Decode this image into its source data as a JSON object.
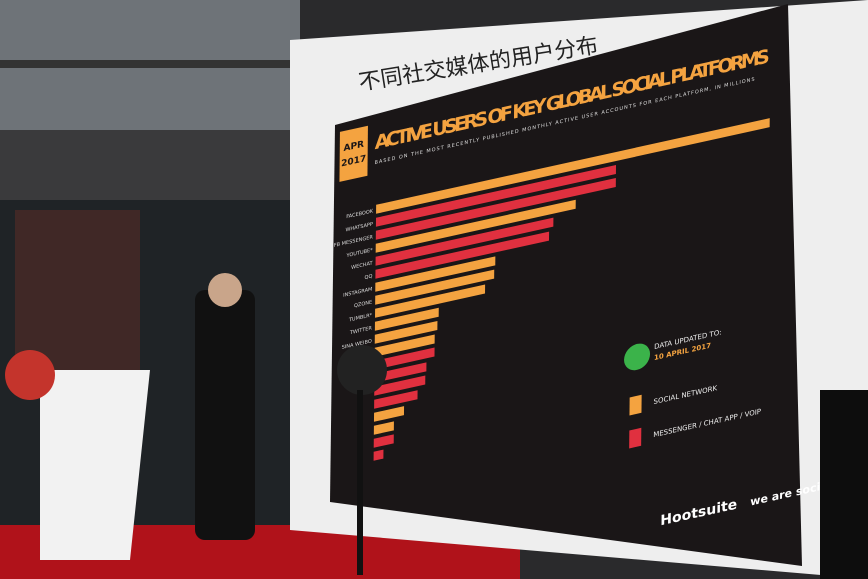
{
  "slide": {
    "caption": "不同社交媒体的用户分布",
    "badge_month": "APR",
    "badge_year": "2017",
    "title": "ACTIVE USERS OF KEY GLOBAL SOCIAL PLATFORMS",
    "subtitle": "BASED ON THE MOST RECENTLY PUBLISHED MONTHLY ACTIVE USER ACCOUNTS FOR EACH PLATFORM, IN MILLIONS",
    "platforms": [
      {
        "name": "FACEBOOK",
        "color": "#f4a340",
        "value": 1968
      },
      {
        "name": "WHATSAPP",
        "color": "#e0303f",
        "value": 1200
      },
      {
        "name": "FB MESSENGER",
        "color": "#e0303f",
        "value": 1200
      },
      {
        "name": "YOUTUBE*",
        "color": "#f4a340",
        "value": 1000
      },
      {
        "name": "WECHAT",
        "color": "#e0303f",
        "value": 889
      },
      {
        "name": "QQ",
        "color": "#e0303f",
        "value": 868
      },
      {
        "name": "INSTAGRAM",
        "color": "#f4a340",
        "value": 600
      },
      {
        "name": "QZONE",
        "color": "#f4a340",
        "value": 595
      },
      {
        "name": "TUMBLR*",
        "color": "#f4a340",
        "value": 550
      },
      {
        "name": "TWITTER",
        "color": "#f4a340",
        "value": 319
      },
      {
        "name": "SINA WEIBO",
        "color": "#f4a340",
        "value": 313
      },
      {
        "name": null,
        "color": "#f4a340",
        "value": 300
      },
      {
        "name": null,
        "color": "#e0303f",
        "value": 300
      },
      {
        "name": null,
        "color": "#e0303f",
        "value": 260
      },
      {
        "name": null,
        "color": "#e0303f",
        "value": 255
      },
      {
        "name": null,
        "color": "#e0303f",
        "value": 217
      },
      {
        "name": null,
        "color": "#f4a340",
        "value": 150
      },
      {
        "name": null,
        "color": "#f4a340",
        "value": 100
      },
      {
        "name": null,
        "color": "#e0303f",
        "value": 100
      },
      {
        "name": null,
        "color": "#e0303f",
        "value": 49
      }
    ],
    "update_label": "DATA UPDATED TO:",
    "update_date": "10 APRIL 2017",
    "legend": [
      {
        "label": "SOCIAL NETWORK",
        "color": "#f4a340"
      },
      {
        "label": "MESSENGER / CHAT APP / VOIP",
        "color": "#e0303f"
      }
    ],
    "brand": "Hootsuite",
    "partner": "we are social"
  }
}
